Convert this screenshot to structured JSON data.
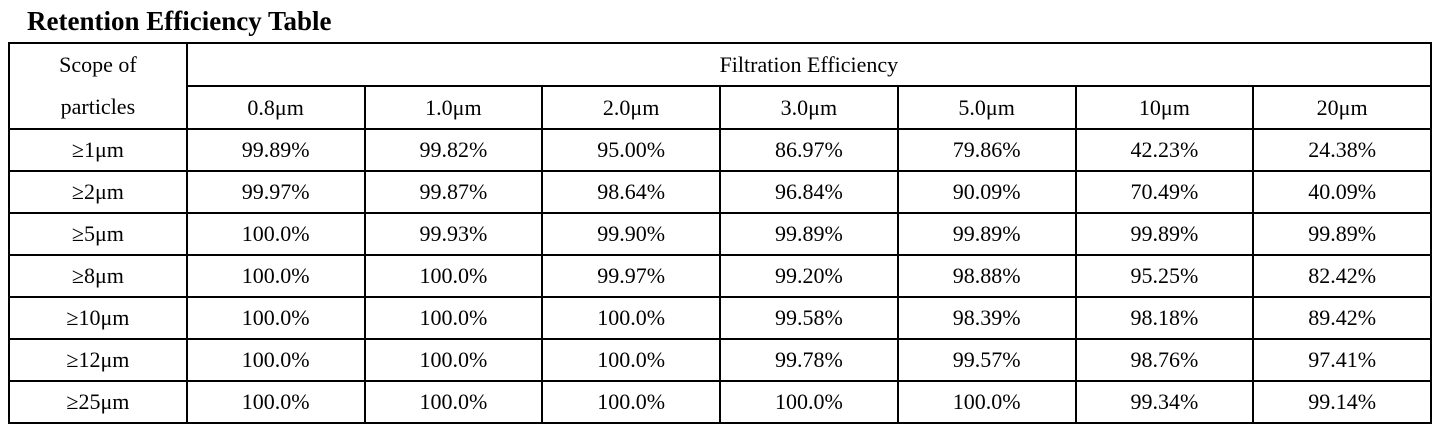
{
  "title": "Retention Efficiency Table",
  "table": {
    "corner_header_line1": "Scope of",
    "corner_header_line2": "particles",
    "group_header": "Filtration Efficiency",
    "column_headers": [
      "0.8μm",
      "1.0μm",
      "2.0μm",
      "3.0μm",
      "5.0μm",
      "10μm",
      "20μm"
    ],
    "rows": [
      {
        "label": "≥1μm",
        "values": [
          "99.89%",
          "99.82%",
          "95.00%",
          "86.97%",
          "79.86%",
          "42.23%",
          "24.38%"
        ]
      },
      {
        "label": "≥2μm",
        "values": [
          "99.97%",
          "99.87%",
          "98.64%",
          "96.84%",
          "90.09%",
          "70.49%",
          "40.09%"
        ]
      },
      {
        "label": "≥5μm",
        "values": [
          "100.0%",
          "99.93%",
          "99.90%",
          "99.89%",
          "99.89%",
          "99.89%",
          "99.89%"
        ]
      },
      {
        "label": "≥8μm",
        "values": [
          "100.0%",
          "100.0%",
          "99.97%",
          "99.20%",
          "98.88%",
          "95.25%",
          "82.42%"
        ]
      },
      {
        "label": "≥10μm",
        "values": [
          "100.0%",
          "100.0%",
          "100.0%",
          "99.58%",
          "98.39%",
          "98.18%",
          "89.42%"
        ]
      },
      {
        "label": "≥12μm",
        "values": [
          "100.0%",
          "100.0%",
          "100.0%",
          "99.78%",
          "99.57%",
          "98.76%",
          "97.41%"
        ]
      },
      {
        "label": "≥25μm",
        "values": [
          "100.0%",
          "100.0%",
          "100.0%",
          "100.0%",
          "100.0%",
          "99.34%",
          "99.14%"
        ]
      }
    ]
  },
  "colors": {
    "text": "#000000",
    "border": "#000000",
    "background": "#ffffff"
  }
}
